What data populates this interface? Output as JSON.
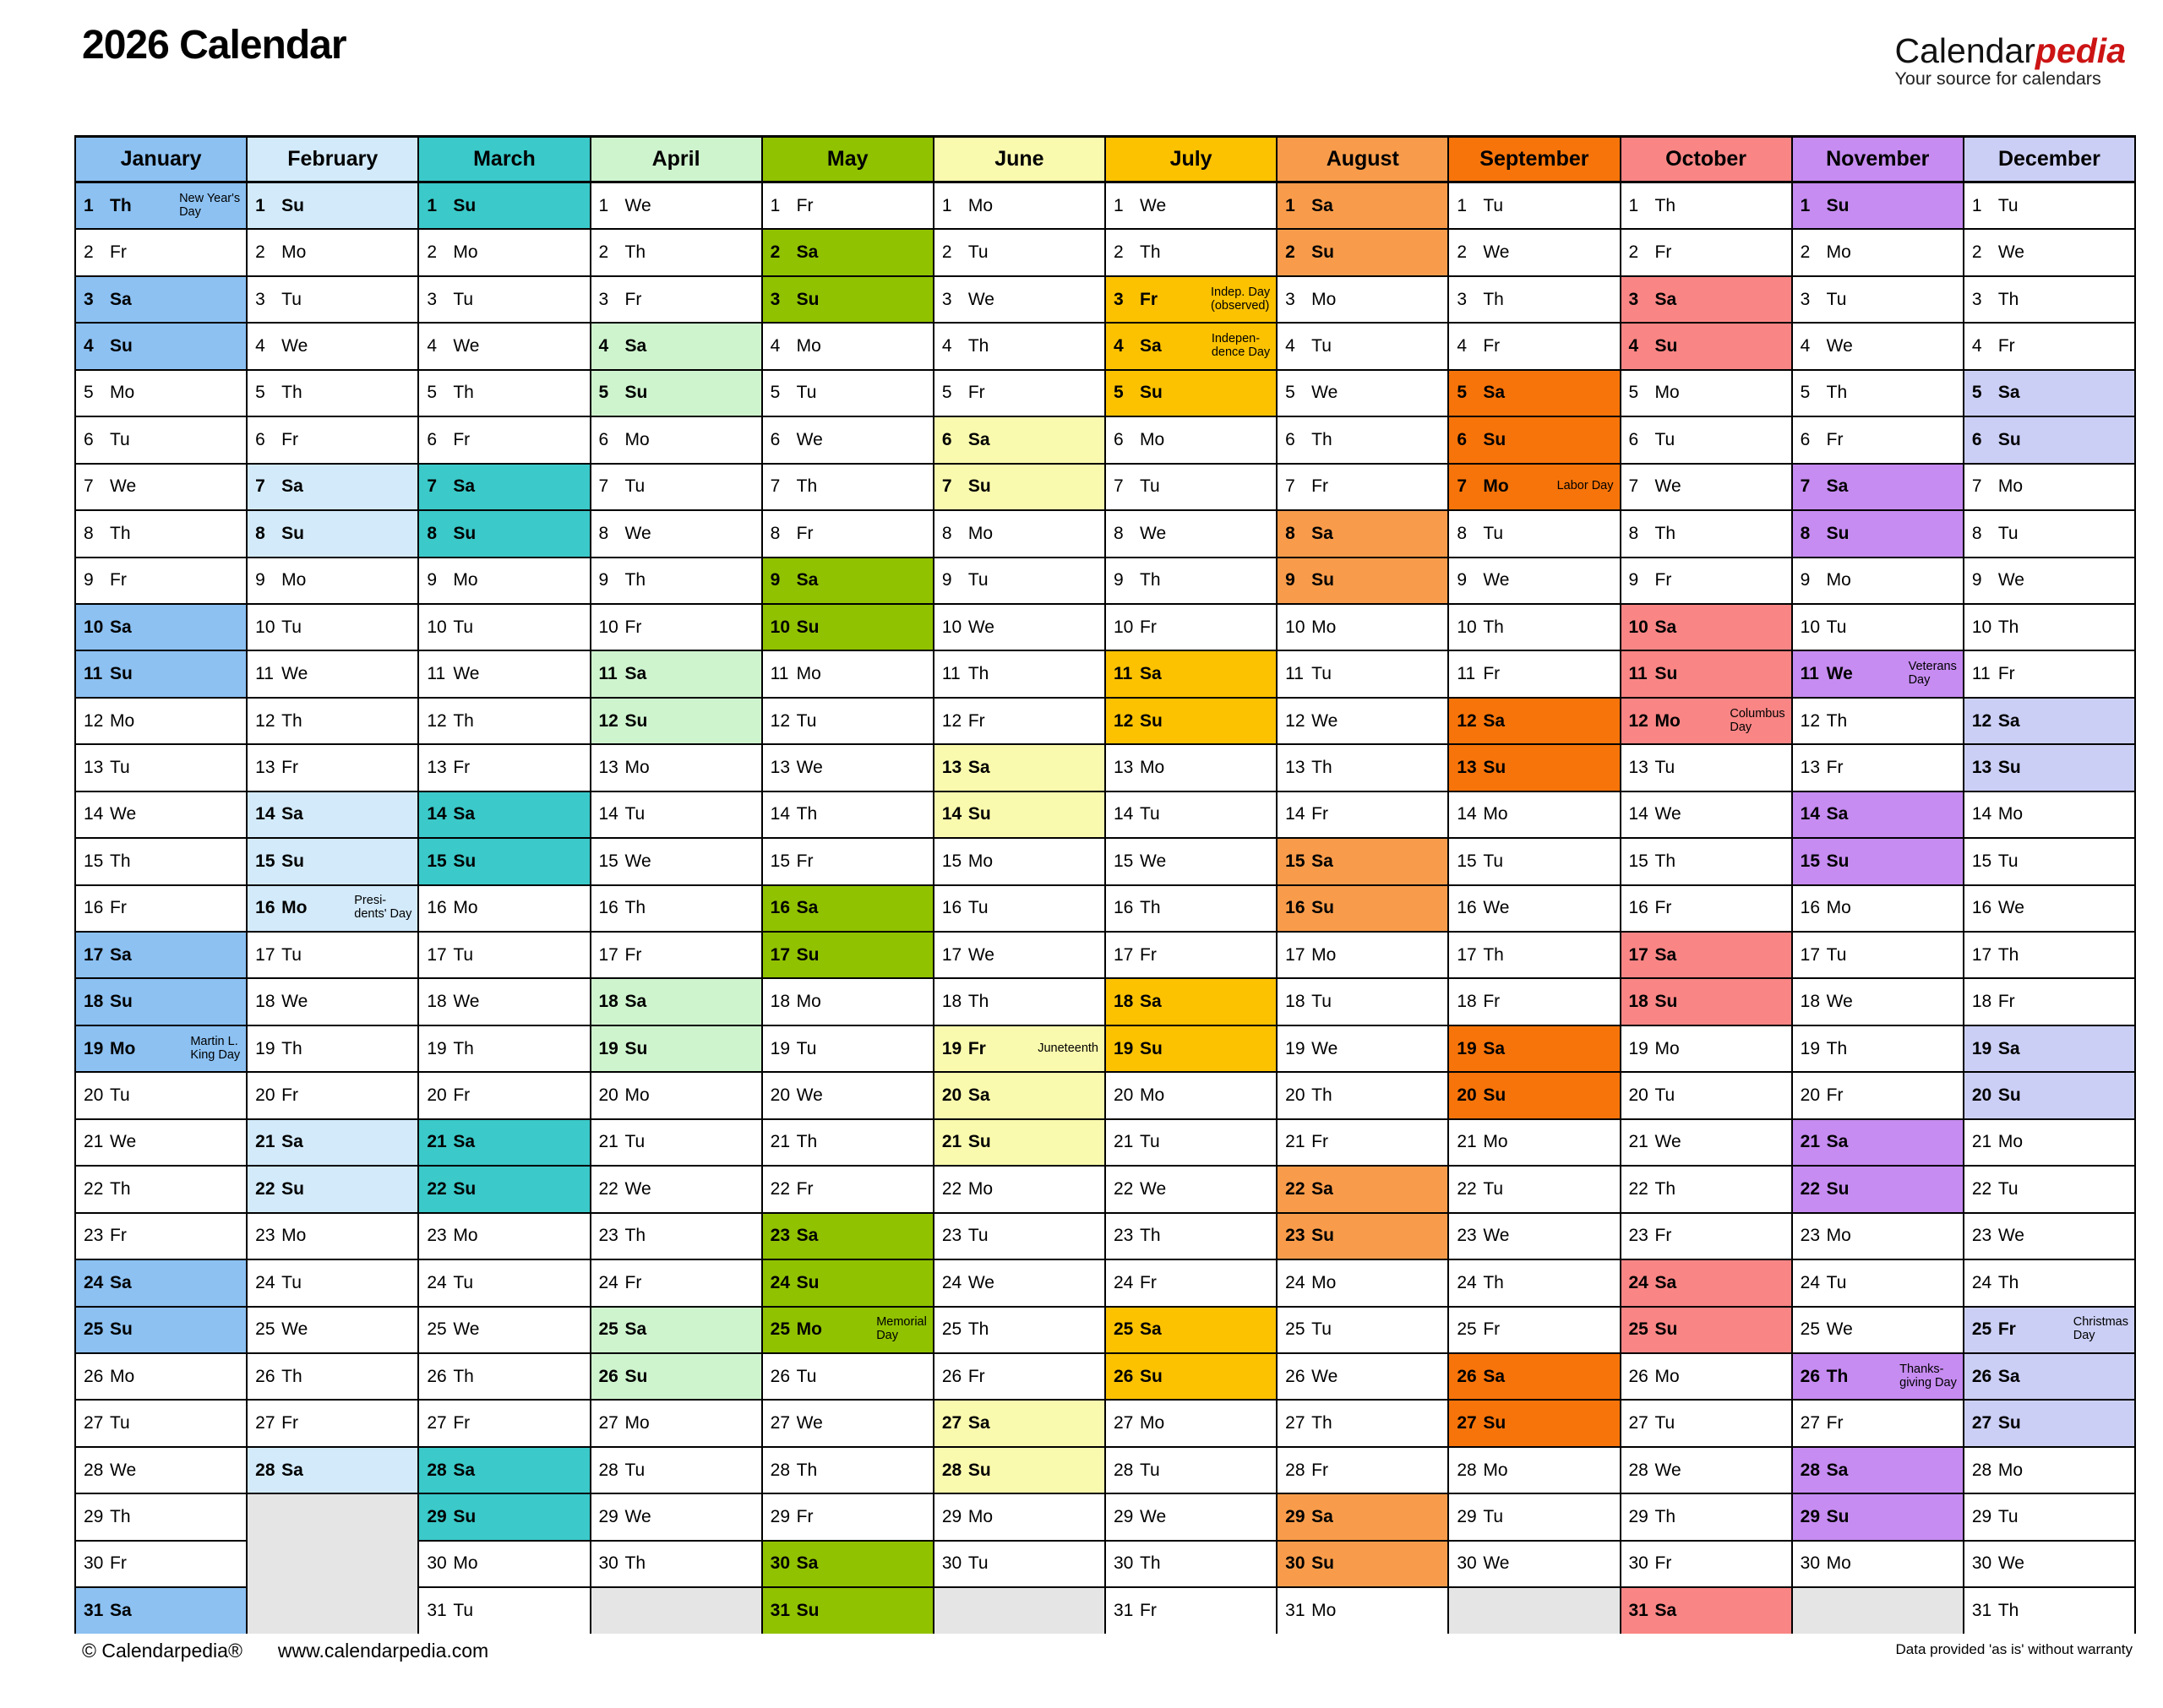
{
  "title": "2026 Calendar",
  "logo": {
    "brand_black": "Calendar",
    "brand_red": "pedia",
    "brand_red_color": "#CC1414",
    "tagline": "Your source for calendars"
  },
  "footer": {
    "copyright": "© Calendarpedia®",
    "url": "www.calendarpedia.com",
    "disclaimer": "Data provided 'as is' without warranty"
  },
  "calendar": {
    "year": 2026,
    "weekday_labels": [
      "Mo",
      "Tu",
      "We",
      "Th",
      "Fr",
      "Sa",
      "Su"
    ],
    "empty_cell_color": "#E5E5E5",
    "months": [
      {
        "name": "January",
        "color": "#8CC1F2",
        "days": 31,
        "first_weekday": 3,
        "holidays": {
          "1": "New Year's\nDay",
          "19": "Martin L.\nKing Day"
        }
      },
      {
        "name": "February",
        "color": "#D2EAFA",
        "days": 28,
        "first_weekday": 6,
        "holidays": {
          "16": "Presi-\ndents' Day"
        }
      },
      {
        "name": "March",
        "color": "#3BC9C9",
        "days": 31,
        "first_weekday": 6,
        "holidays": {}
      },
      {
        "name": "April",
        "color": "#CEF4CE",
        "days": 30,
        "first_weekday": 2,
        "holidays": {}
      },
      {
        "name": "May",
        "color": "#90C200",
        "days": 31,
        "first_weekday": 4,
        "holidays": {
          "25": "Memorial\nDay"
        }
      },
      {
        "name": "June",
        "color": "#FAFAAE",
        "days": 30,
        "first_weekday": 0,
        "holidays": {
          "19": "Juneteenth"
        }
      },
      {
        "name": "July",
        "color": "#FCC200",
        "days": 31,
        "first_weekday": 2,
        "holidays": {
          "3": "Indep. Day\n(observed)",
          "4": "Indepen-\ndence Day"
        }
      },
      {
        "name": "August",
        "color": "#F89C4B",
        "days": 31,
        "first_weekday": 5,
        "holidays": {}
      },
      {
        "name": "September",
        "color": "#F7740A",
        "days": 30,
        "first_weekday": 1,
        "holidays": {
          "7": "Labor Day"
        }
      },
      {
        "name": "October",
        "color": "#FA8585",
        "days": 31,
        "first_weekday": 3,
        "holidays": {
          "12": "Columbus\nDay"
        }
      },
      {
        "name": "November",
        "color": "#C68CF1",
        "days": 30,
        "first_weekday": 6,
        "holidays": {
          "11": "Veterans\nDay",
          "26": "Thanks-\ngiving Day"
        }
      },
      {
        "name": "December",
        "color": "#CBCFF5",
        "days": 31,
        "first_weekday": 1,
        "holidays": {
          "25": "Christmas\nDay"
        }
      }
    ]
  }
}
